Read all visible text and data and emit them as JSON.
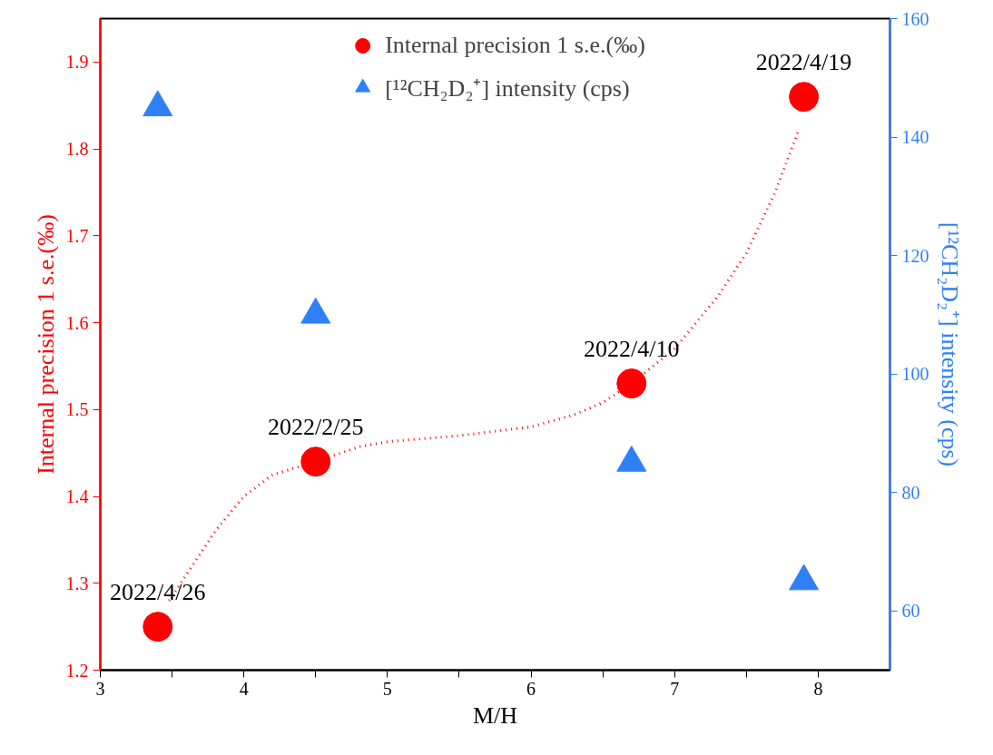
{
  "chart_data": {
    "type": "scatter",
    "xlabel": "M/H",
    "ylabel": "Internal precision 1 s.e.(‰)",
    "y2label": "[¹²CH₂D₂⁺] intensity (cps)",
    "x": [
      3.4,
      4.5,
      6.7,
      7.9
    ],
    "series": [
      {
        "name": "Internal precision 1 s.e.(‰)",
        "color": "#ff0000",
        "marker": "circle",
        "values": [
          1.25,
          1.44,
          1.53,
          1.86
        ]
      },
      {
        "name": "[¹²CH₂D₂⁺] intensity (cps)",
        "color": "#2f80f5",
        "marker": "triangle",
        "axis": "y2",
        "values": [
          145,
          110,
          85,
          65
        ]
      },
      {
        "type": "line",
        "color": "#ff0000",
        "line_style": "dotted",
        "x": [
          3.48,
          3.6,
          3.8,
          4.0,
          4.2,
          4.5,
          4.8,
          5.0,
          5.5,
          6.0,
          6.3,
          6.5,
          6.7,
          7.0,
          7.3,
          7.5,
          7.7,
          7.86
        ],
        "values": [
          1.28,
          1.31,
          1.36,
          1.4,
          1.425,
          1.44,
          1.457,
          1.463,
          1.47,
          1.48,
          1.494,
          1.508,
          1.53,
          1.57,
          1.63,
          1.68,
          1.75,
          1.82
        ]
      }
    ],
    "annotations": [
      {
        "text": "2022/4/26",
        "x": 3.4,
        "y": 1.25
      },
      {
        "text": "2022/2/25",
        "x": 4.5,
        "y": 1.44
      },
      {
        "text": "2022/4/10",
        "x": 6.7,
        "y": 1.53
      },
      {
        "text": "2022/4/19",
        "x": 7.9,
        "y": 1.86
      }
    ],
    "xlim": [
      3,
      8.5
    ],
    "xticks": [
      3,
      {
        "value": 3.5,
        "label": null
      },
      4,
      {
        "value": 4.5,
        "label": null
      },
      5,
      {
        "value": 5.5,
        "label": null
      },
      6,
      {
        "value": 6.5,
        "label": null
      },
      7,
      {
        "value": 7.5,
        "label": null
      },
      8
    ],
    "ylim": [
      1.2,
      1.95
    ],
    "yticks": [
      1.2,
      1.3,
      1.4,
      1.5,
      1.6,
      1.7,
      1.8,
      1.9
    ],
    "y2lim": [
      50,
      160
    ],
    "y2ticks": [
      60,
      80,
      100,
      120,
      140,
      160
    ],
    "grid": false,
    "legend": "top"
  }
}
